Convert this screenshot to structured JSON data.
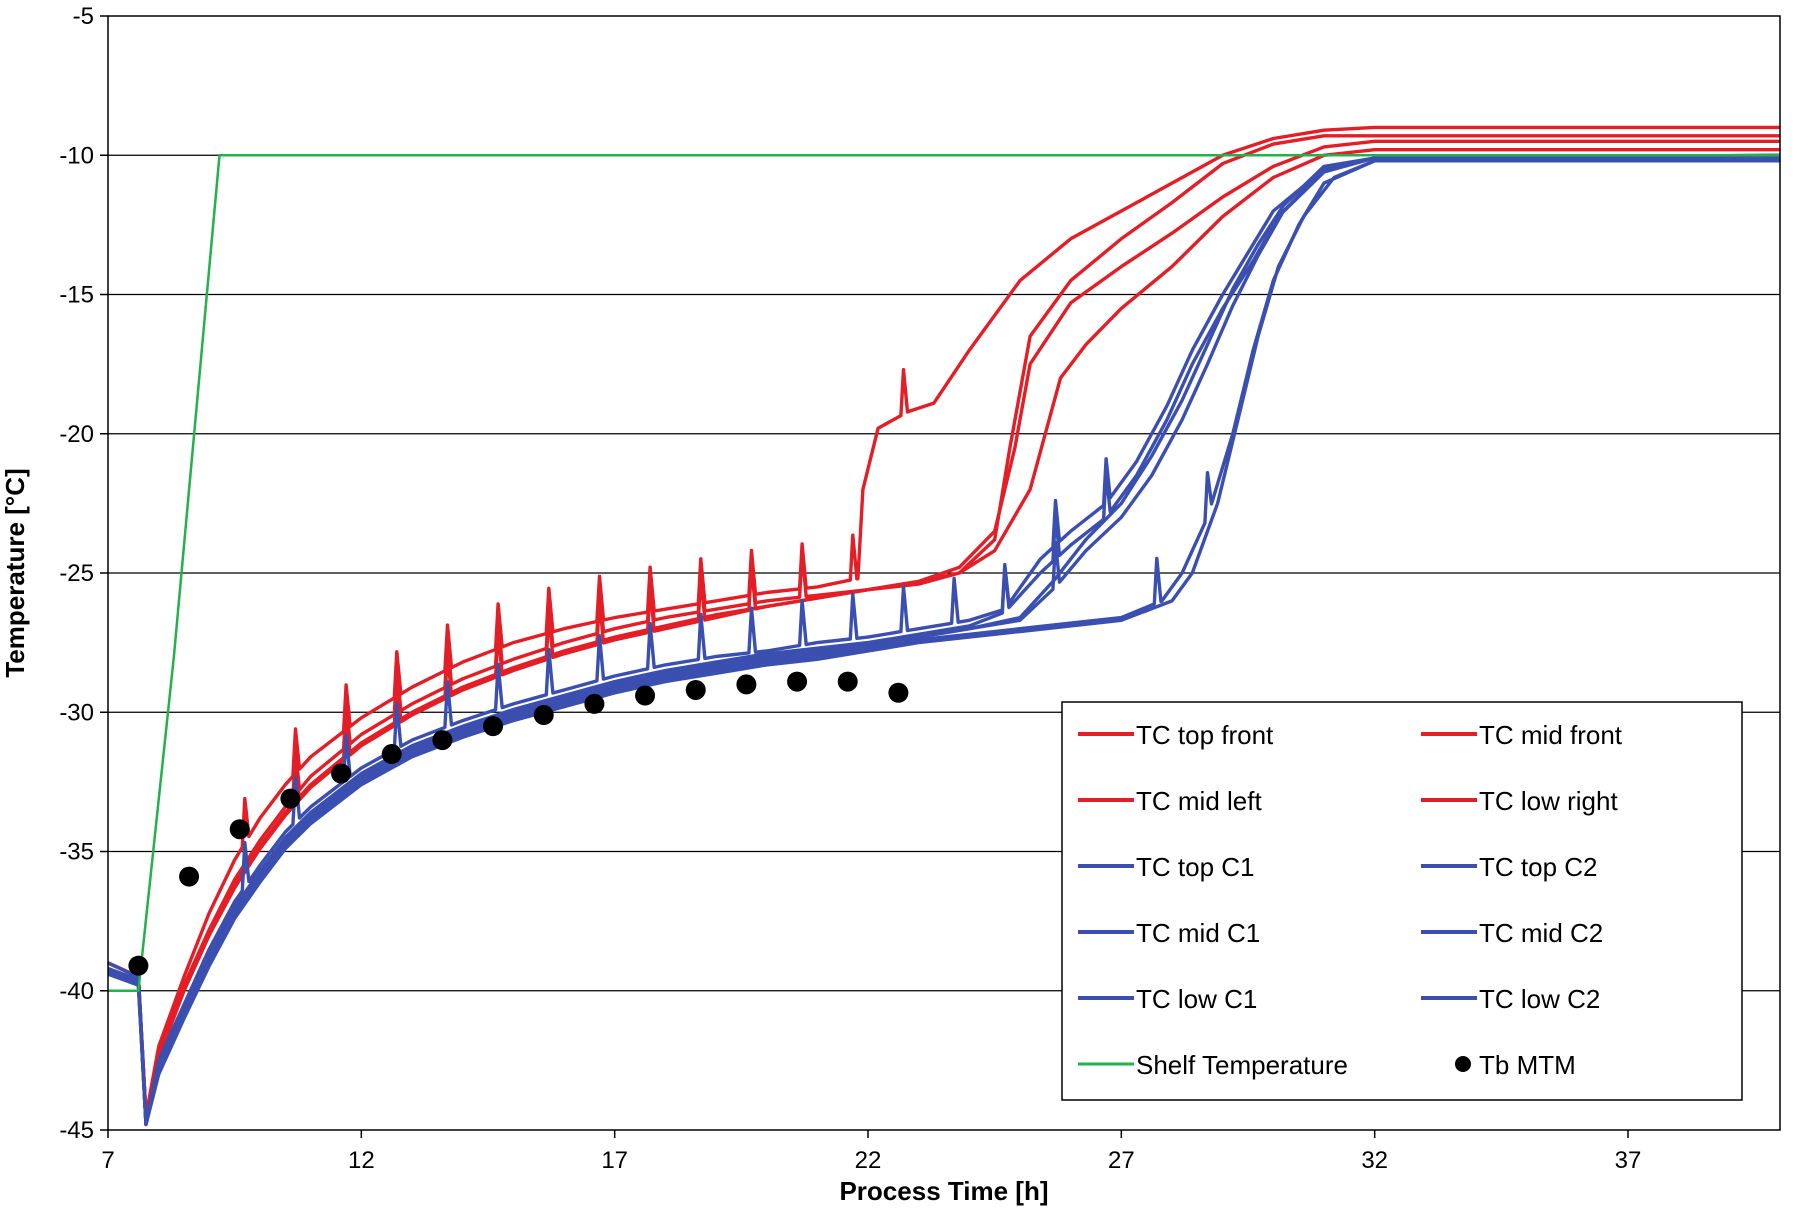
{
  "chart_data": {
    "type": "line",
    "title": "",
    "xlabel": "Process Time [h]",
    "ylabel": "Temperature [°C]",
    "xlim": [
      7,
      40
    ],
    "ylim": [
      -45,
      -5
    ],
    "xticks": [
      7,
      12,
      17,
      22,
      27,
      32,
      37
    ],
    "yticks": [
      -45,
      -40,
      -35,
      -30,
      -25,
      -20,
      -15,
      -10,
      -5
    ],
    "x_tick_labels": [
      "7",
      "12",
      "17",
      "22",
      "27",
      "32",
      "37"
    ],
    "y_tick_labels": [
      "-45",
      "-40",
      "-35",
      "-30",
      "-25",
      "-20",
      "-15",
      "-10",
      "-5"
    ],
    "grid": "horizontal",
    "legend_position": "bottom-right",
    "colors": {
      "red": "#e41e26",
      "blue": "#3a4fb0",
      "green": "#22b14c",
      "black": "#000000"
    },
    "series": [
      {
        "name": "TC top front",
        "color": "#e41e26",
        "spike_start": 9.7,
        "spikes": [
          9.7,
          10.7,
          11.7,
          12.7,
          13.7,
          14.7,
          15.7,
          16.7,
          17.7,
          18.7,
          19.7,
          20.7,
          21.7,
          22.7
        ],
        "x": [
          7,
          7.6,
          7.75,
          8,
          8.5,
          9,
          9.5,
          10,
          10.5,
          11,
          12,
          13,
          14,
          15,
          16,
          17,
          18,
          19,
          20,
          21,
          21.8,
          21.9,
          22.2,
          22.8,
          23.3,
          24,
          25,
          26,
          27,
          28,
          29,
          30,
          31,
          32,
          40
        ],
        "y": [
          -39,
          -39.5,
          -44.5,
          -42,
          -39.5,
          -37.2,
          -35.3,
          -33.8,
          -32.6,
          -31.6,
          -30.2,
          -29.1,
          -28.2,
          -27.5,
          -27,
          -26.6,
          -26.3,
          -26,
          -25.7,
          -25.5,
          -25.2,
          -22,
          -19.8,
          -19.2,
          -18.9,
          -17,
          -14.5,
          -13,
          -12,
          -11,
          -10,
          -9.4,
          -9.1,
          -9,
          -9
        ]
      },
      {
        "name": "TC mid front",
        "color": "#e41e26",
        "spikes": [
          10.7,
          11.7,
          12.7,
          13.7,
          14.7,
          15.7,
          16.7,
          17.7,
          18.7,
          19.7,
          20.7
        ],
        "x": [
          7,
          7.6,
          7.75,
          8,
          8.5,
          9,
          9.5,
          10,
          10.5,
          11,
          12,
          13,
          14,
          15,
          16,
          17,
          18,
          19,
          20,
          21,
          22,
          23,
          23.8,
          24.5,
          24.8,
          25.2,
          26,
          27,
          28,
          29,
          30,
          31,
          32,
          40
        ],
        "y": [
          -39,
          -39.5,
          -44.5,
          -42.2,
          -39.8,
          -37.8,
          -36,
          -34.6,
          -33.4,
          -32.3,
          -30.8,
          -29.7,
          -28.8,
          -28.1,
          -27.5,
          -27,
          -26.6,
          -26.3,
          -26,
          -25.8,
          -25.6,
          -25.4,
          -25,
          -23.8,
          -20.5,
          -16.5,
          -14.5,
          -13,
          -11.7,
          -10.3,
          -9.6,
          -9.3,
          -9.3,
          -9.3
        ]
      },
      {
        "name": "TC mid left",
        "color": "#e41e26",
        "spikes": [
          10.7,
          11.7,
          12.7,
          13.7,
          14.7,
          15.7,
          16.7,
          17.7,
          18.7,
          19.7
        ],
        "x": [
          7,
          7.6,
          7.75,
          8,
          8.5,
          9,
          9.5,
          10,
          10.5,
          11,
          12,
          13,
          14,
          15,
          16,
          17,
          18,
          19,
          20,
          21,
          22,
          23,
          23.8,
          24.5,
          24.9,
          25.2,
          26,
          27,
          28,
          29,
          30,
          31,
          32,
          40
        ],
        "y": [
          -39,
          -39.5,
          -44.5,
          -42.4,
          -40,
          -38,
          -36.3,
          -34.9,
          -33.7,
          -32.7,
          -31.2,
          -30.1,
          -29.2,
          -28.5,
          -27.9,
          -27.4,
          -27,
          -26.6,
          -26.2,
          -25.9,
          -25.6,
          -25.3,
          -24.8,
          -23.5,
          -20.5,
          -17.5,
          -15.3,
          -14,
          -12.8,
          -11.5,
          -10.4,
          -9.7,
          -9.5,
          -9.5
        ]
      },
      {
        "name": "TC low right",
        "color": "#e41e26",
        "spikes": [],
        "x": [
          7,
          7.6,
          7.75,
          8,
          8.5,
          9,
          9.5,
          10,
          10.5,
          11,
          12,
          13,
          14,
          15,
          16,
          17,
          18,
          19,
          20,
          21,
          22,
          23,
          23.8,
          24.5,
          25.2,
          25.8,
          26.3,
          27,
          28,
          29,
          30,
          31,
          32,
          40
        ],
        "y": [
          -39,
          -39.5,
          -44.5,
          -42.3,
          -39.9,
          -37.9,
          -36.2,
          -34.8,
          -33.6,
          -32.6,
          -31.1,
          -30,
          -29.1,
          -28.4,
          -27.8,
          -27.3,
          -26.9,
          -26.5,
          -26.2,
          -25.9,
          -25.6,
          -25.3,
          -25,
          -24.2,
          -22,
          -18,
          -16.8,
          -15.5,
          -14,
          -12.2,
          -10.8,
          -10,
          -9.8,
          -9.8
        ]
      },
      {
        "name": "TC top C1",
        "color": "#3a4fb0",
        "spikes": [
          9.7,
          10.7,
          11.7,
          12.7,
          13.7,
          14.7,
          15.7,
          16.7,
          17.7,
          18.7,
          19.7,
          20.7,
          21.7,
          22.7,
          23.7,
          24.7,
          25.7,
          26.7
        ],
        "x": [
          7,
          7.6,
          7.75,
          8,
          8.5,
          9,
          9.5,
          10,
          10.5,
          11,
          12,
          13,
          14,
          15,
          16,
          17,
          18,
          19,
          20,
          21,
          22,
          23,
          24,
          24.7,
          25.4,
          26,
          26.7,
          27.3,
          27.9,
          28.4,
          29,
          29.5,
          30,
          31,
          32,
          40
        ],
        "y": [
          -39,
          -39.5,
          -44.8,
          -42.5,
          -40.5,
          -38.5,
          -36.8,
          -35.5,
          -34.3,
          -33.4,
          -32,
          -31,
          -30.3,
          -29.7,
          -29.2,
          -28.7,
          -28.3,
          -28,
          -27.8,
          -27.5,
          -27.3,
          -27,
          -26.7,
          -26.3,
          -24.5,
          -23.5,
          -22.5,
          -21,
          -19,
          -17,
          -15,
          -13.5,
          -12,
          -10.5,
          -10.1,
          -10
        ]
      },
      {
        "name": "TC top C2",
        "color": "#3a4fb0",
        "spikes": [
          24.7,
          25.7,
          26.7
        ],
        "x": [
          7,
          7.6,
          7.75,
          8,
          8.5,
          9,
          9.5,
          10,
          10.5,
          11,
          12,
          13,
          14,
          15,
          16,
          17,
          18,
          19,
          20,
          21,
          22,
          23,
          24,
          24.7,
          25.4,
          26,
          26.7,
          27.3,
          27.9,
          28.4,
          29,
          29.6,
          30.1,
          31,
          32,
          40
        ],
        "y": [
          -39.2,
          -39.6,
          -44.8,
          -42.6,
          -40.6,
          -38.6,
          -37,
          -35.7,
          -34.5,
          -33.6,
          -32.2,
          -31.2,
          -30.5,
          -29.9,
          -29.4,
          -28.9,
          -28.5,
          -28.2,
          -27.9,
          -27.7,
          -27.5,
          -27.2,
          -26.9,
          -26.4,
          -25,
          -24,
          -23,
          -21.5,
          -19.5,
          -17.5,
          -15.5,
          -13.8,
          -12.2,
          -10.6,
          -10.1,
          -10
        ]
      },
      {
        "name": "TC mid C1",
        "color": "#3a4fb0",
        "spikes": [],
        "x": [
          7,
          7.6,
          7.75,
          8,
          8.5,
          9,
          9.5,
          10,
          10.5,
          11,
          12,
          13,
          14,
          15,
          16,
          17,
          18,
          19,
          20,
          21,
          22,
          23,
          24,
          25,
          25.7,
          26.3,
          27,
          27.6,
          28.2,
          28.7,
          29.2,
          29.7,
          30.2,
          31,
          32,
          40
        ],
        "y": [
          -39.3,
          -39.7,
          -44.8,
          -42.7,
          -40.7,
          -38.8,
          -37.1,
          -35.8,
          -34.6,
          -33.7,
          -32.3,
          -31.3,
          -30.6,
          -30,
          -29.5,
          -29,
          -28.6,
          -28.3,
          -28,
          -27.8,
          -27.6,
          -27.3,
          -27,
          -26.6,
          -25.2,
          -23.8,
          -22.5,
          -20.8,
          -18.8,
          -16.8,
          -14.8,
          -13.2,
          -11.8,
          -10.4,
          -10.1,
          -10.1
        ]
      },
      {
        "name": "TC mid C2",
        "color": "#3a4fb0",
        "spikes": [
          25.7
        ],
        "x": [
          7,
          7.6,
          7.75,
          8,
          8.5,
          9,
          9.5,
          10,
          10.5,
          11,
          12,
          13,
          14,
          15,
          16,
          17,
          18,
          19,
          20,
          21,
          22,
          23,
          24,
          25,
          25.7,
          26.3,
          27,
          27.6,
          28.2,
          28.7,
          29.2,
          29.7,
          30.2,
          31,
          32,
          40
        ],
        "y": [
          -39.3,
          -39.7,
          -44.8,
          -42.8,
          -40.8,
          -38.9,
          -37.2,
          -35.9,
          -34.7,
          -33.8,
          -32.4,
          -31.4,
          -30.7,
          -30.1,
          -29.6,
          -29.1,
          -28.7,
          -28.4,
          -28.1,
          -27.9,
          -27.6,
          -27.3,
          -27,
          -26.7,
          -25.5,
          -24.2,
          -23,
          -21.5,
          -19.5,
          -17.5,
          -15.4,
          -13.6,
          -12,
          -10.5,
          -10.1,
          -10.1
        ]
      },
      {
        "name": "TC low C1",
        "color": "#3a4fb0",
        "spikes": [
          27.7,
          28.7
        ],
        "x": [
          7,
          7.6,
          7.75,
          8,
          8.5,
          9,
          9.5,
          10,
          10.5,
          11,
          12,
          13,
          14,
          15,
          16,
          17,
          18,
          19,
          20,
          21,
          22,
          23,
          24,
          25,
          26,
          27,
          27.8,
          28.2,
          28.7,
          29.2,
          29.6,
          30,
          30.5,
          31,
          32,
          40
        ],
        "y": [
          -39.4,
          -39.8,
          -44.8,
          -42.9,
          -40.9,
          -39,
          -37.3,
          -36,
          -34.8,
          -33.9,
          -32.5,
          -31.5,
          -30.8,
          -30.2,
          -29.7,
          -29.2,
          -28.8,
          -28.5,
          -28.2,
          -28,
          -27.7,
          -27.4,
          -27.2,
          -27,
          -26.8,
          -26.6,
          -26,
          -25,
          -23,
          -20,
          -17,
          -14.5,
          -12.5,
          -11,
          -10.2,
          -10.2
        ]
      },
      {
        "name": "TC low C2",
        "color": "#3a4fb0",
        "spikes": [],
        "x": [
          7,
          7.6,
          7.75,
          8,
          8.5,
          9,
          9.5,
          10,
          10.5,
          11,
          12,
          13,
          14,
          15,
          16,
          17,
          18,
          19,
          20,
          21,
          22,
          23,
          24,
          25,
          26,
          27,
          28,
          28.4,
          28.9,
          29.3,
          29.7,
          30.1,
          30.6,
          31.2,
          32,
          40
        ],
        "y": [
          -39.4,
          -39.8,
          -44.8,
          -43,
          -41,
          -39.1,
          -37.4,
          -36.1,
          -34.9,
          -34,
          -32.6,
          -31.6,
          -30.9,
          -30.3,
          -29.8,
          -29.3,
          -28.9,
          -28.6,
          -28.3,
          -28.1,
          -27.8,
          -27.5,
          -27.3,
          -27.1,
          -26.9,
          -26.7,
          -26,
          -25,
          -22.5,
          -19.5,
          -16.5,
          -14,
          -12.2,
          -10.8,
          -10.2,
          -10.2
        ]
      },
      {
        "name": "Shelf Temperature",
        "color": "#22b14c",
        "spikes": [],
        "x": [
          7,
          7.6,
          8.3,
          9.2,
          40
        ],
        "y": [
          -40,
          -40,
          -28,
          -10,
          -10
        ]
      }
    ],
    "markers": {
      "name": "Tb MTM",
      "color": "#000000",
      "x": [
        7.6,
        8.6,
        9.6,
        10.6,
        11.6,
        12.6,
        13.6,
        14.6,
        15.6,
        16.6,
        17.6,
        18.6,
        19.6,
        20.6,
        21.6,
        22.6
      ],
      "y": [
        -39.1,
        -35.9,
        -34.2,
        -33.1,
        -32.2,
        -31.5,
        -31,
        -30.5,
        -30.1,
        -29.7,
        -29.4,
        -29.2,
        -29,
        -28.9,
        -28.9,
        -29.3
      ]
    },
    "legend": [
      "TC top front",
      "TC mid front",
      "TC mid left",
      "TC low right",
      "TC top C1",
      "TC top C2",
      "TC mid C1",
      "TC mid C2",
      "TC low C1",
      "TC low C2",
      "Shelf Temperature",
      "Tb MTM"
    ]
  }
}
